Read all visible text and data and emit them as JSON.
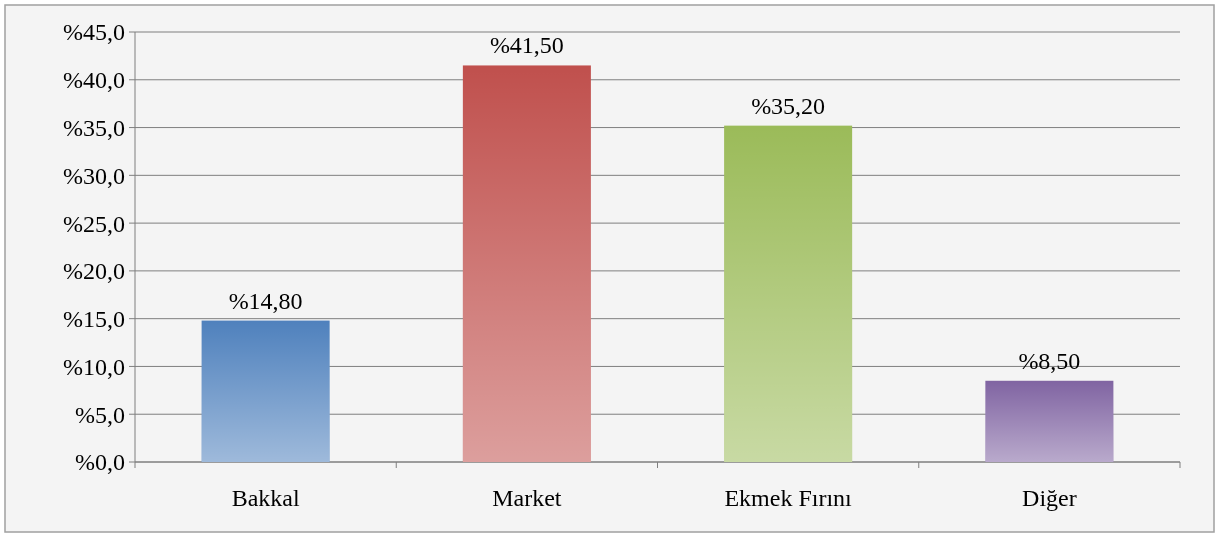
{
  "chart_data": {
    "type": "bar",
    "categories": [
      "Bakkal",
      "Market",
      "Ekmek Fırını",
      "Diğer"
    ],
    "values": [
      14.8,
      41.5,
      35.2,
      8.5
    ],
    "colors": [
      "#4f81bd",
      "#c0504d",
      "#9bbb59",
      "#8064a2"
    ],
    "value_labels": [
      "%14,80",
      "%41,50",
      "%35,20",
      "%8,50"
    ],
    "ylim": [
      0,
      45
    ],
    "yticks": [
      {
        "value": 0,
        "label": "%0,0"
      },
      {
        "value": 5,
        "label": "%5,0"
      },
      {
        "value": 10,
        "label": "%10,0"
      },
      {
        "value": 15,
        "label": "%15,0"
      },
      {
        "value": 20,
        "label": "%20,0"
      },
      {
        "value": 25,
        "label": "%25,0"
      },
      {
        "value": 30,
        "label": "%30,0"
      },
      {
        "value": 35,
        "label": "%35,0"
      },
      {
        "value": 40,
        "label": "%40,0"
      },
      {
        "value": 45,
        "label": "%45,0"
      }
    ],
    "grid": "y"
  }
}
